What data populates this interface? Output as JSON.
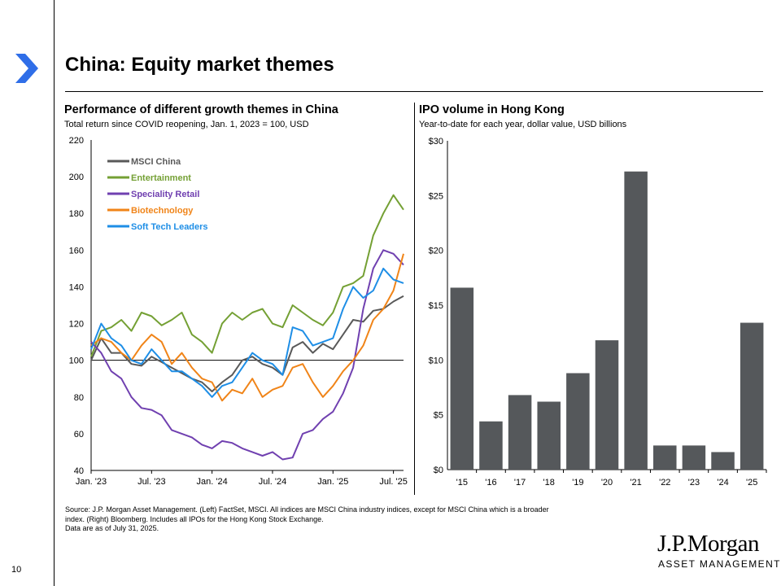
{
  "page": {
    "title": "China: Equity market themes",
    "page_number": "10",
    "source_lines": [
      "Source: J.P. Morgan Asset Management. (Left) FactSet, MSCI. All indices are MSCI China industry indices, except for MSCI China which is a broader",
      "index. (Right) Bloomberg. Includes all IPOs for the Hong Kong Stock Exchange.",
      "Data are as of July 31, 2025."
    ],
    "logo_name": "J.P.Morgan",
    "logo_tagline": "ASSET MANAGEMENT"
  },
  "colors": {
    "accent_arrow": "#2f6ee8",
    "msci_china": "#595959",
    "entertainment": "#74a034",
    "speciality_retail": "#7040b0",
    "biotechnology": "#f08418",
    "soft_tech": "#1e8ee6",
    "bars": "#55585b"
  },
  "chart_data": [
    {
      "type": "line",
      "title": "Performance of different growth themes in China",
      "subtitle": "Total return since COVID reopening, Jan. 1, 2023 = 100, USD",
      "xlabel": "",
      "ylabel": "",
      "ylim": [
        40,
        220
      ],
      "yticks": [
        40,
        60,
        80,
        100,
        120,
        140,
        160,
        180,
        200,
        220
      ],
      "xlim": [
        0,
        31
      ],
      "xticks": [
        0,
        6,
        12,
        18,
        24,
        30
      ],
      "xtick_labels": [
        "Jan. '23",
        "Jul. '23",
        "Jan. '24",
        "Jul. '24",
        "Jan. '25",
        "Jul. '25"
      ],
      "x_unit": "months since Jan. 1, 2023",
      "reference_line": 100,
      "legend_position": "top-left",
      "series": [
        {
          "name": "MSCI China",
          "color_key": "msci_china",
          "x": [
            0,
            1,
            2,
            3,
            4,
            5,
            6,
            7,
            8,
            9,
            10,
            11,
            12,
            13,
            14,
            15,
            16,
            17,
            18,
            19,
            20,
            21,
            22,
            23,
            24,
            25,
            26,
            27,
            28,
            29,
            30,
            31
          ],
          "y": [
            100,
            112,
            104,
            104,
            98,
            97,
            102,
            99,
            96,
            93,
            90,
            88,
            83,
            88,
            92,
            100,
            102,
            98,
            96,
            92,
            107,
            110,
            104,
            109,
            106,
            114,
            122,
            121,
            127,
            128,
            132,
            135
          ]
        },
        {
          "name": "Entertainment",
          "color_key": "entertainment",
          "x": [
            0,
            1,
            2,
            3,
            4,
            5,
            6,
            7,
            8,
            9,
            10,
            11,
            12,
            13,
            14,
            15,
            16,
            17,
            18,
            19,
            20,
            21,
            22,
            23,
            24,
            25,
            26,
            27,
            28,
            29,
            30,
            31
          ],
          "y": [
            102,
            116,
            118,
            122,
            116,
            126,
            124,
            119,
            122,
            126,
            114,
            110,
            104,
            120,
            126,
            122,
            126,
            128,
            120,
            118,
            130,
            126,
            122,
            119,
            126,
            140,
            142,
            146,
            168,
            180,
            190,
            182
          ]
        },
        {
          "name": "Speciality Retail",
          "color_key": "speciality_retail",
          "x": [
            0,
            1,
            2,
            3,
            4,
            5,
            6,
            7,
            8,
            9,
            10,
            11,
            12,
            13,
            14,
            15,
            16,
            17,
            18,
            19,
            20,
            21,
            22,
            23,
            24,
            25,
            26,
            27,
            28,
            29,
            30,
            31
          ],
          "y": [
            110,
            104,
            94,
            90,
            80,
            74,
            73,
            70,
            62,
            60,
            58,
            54,
            52,
            56,
            55,
            52,
            50,
            48,
            50,
            46,
            47,
            60,
            62,
            68,
            72,
            82,
            96,
            128,
            150,
            160,
            158,
            152
          ]
        },
        {
          "name": "Biotechnology",
          "color_key": "biotechnology",
          "x": [
            0,
            1,
            2,
            3,
            4,
            5,
            6,
            7,
            8,
            9,
            10,
            11,
            12,
            13,
            14,
            15,
            16,
            17,
            18,
            19,
            20,
            21,
            22,
            23,
            24,
            25,
            26,
            27,
            28,
            29,
            30,
            31
          ],
          "y": [
            108,
            112,
            110,
            104,
            100,
            108,
            114,
            110,
            98,
            104,
            96,
            90,
            88,
            78,
            84,
            82,
            90,
            80,
            84,
            86,
            96,
            98,
            88,
            80,
            86,
            94,
            100,
            108,
            122,
            128,
            138,
            158
          ]
        },
        {
          "name": "Soft Tech Leaders",
          "color_key": "soft_tech",
          "x": [
            0,
            1,
            2,
            3,
            4,
            5,
            6,
            7,
            8,
            9,
            10,
            11,
            12,
            13,
            14,
            15,
            16,
            17,
            18,
            19,
            20,
            21,
            22,
            23,
            24,
            25,
            26,
            27,
            28,
            29,
            30,
            31
          ],
          "y": [
            106,
            120,
            112,
            108,
            100,
            98,
            106,
            100,
            94,
            94,
            90,
            86,
            80,
            86,
            88,
            96,
            104,
            100,
            98,
            92,
            118,
            116,
            108,
            110,
            112,
            128,
            140,
            134,
            138,
            150,
            144,
            142
          ]
        }
      ]
    },
    {
      "type": "bar",
      "title": "IPO volume in Hong Kong",
      "subtitle": "Year-to-date for each year, dollar value, USD billions",
      "xlabel": "",
      "ylabel": "",
      "categories": [
        "'15",
        "'16",
        "'17",
        "'18",
        "'19",
        "'20",
        "'21",
        "'22",
        "'23",
        "'24",
        "'25"
      ],
      "values": [
        16.6,
        4.4,
        6.8,
        6.2,
        8.8,
        11.8,
        27.2,
        2.2,
        2.2,
        1.6,
        13.4
      ],
      "ylim": [
        0,
        30
      ],
      "yticks": [
        0,
        5,
        10,
        15,
        20,
        25,
        30
      ],
      "ytick_labels": [
        "$0",
        "$5",
        "$10",
        "$15",
        "$20",
        "$25",
        "$30"
      ],
      "color_key": "bars"
    }
  ]
}
